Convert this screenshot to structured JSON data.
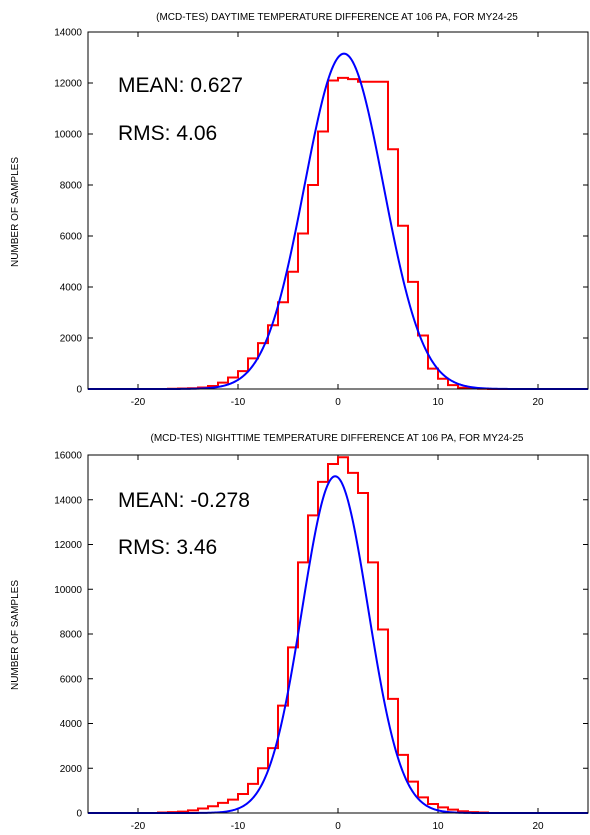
{
  "chart_data": [
    {
      "type": "histogram",
      "title": "(MCD-TES) DAYTIME TEMPERATURE DIFFERENCE AT 106 PA, FOR MY24-25",
      "ylabel": "NUMBER OF SAMPLES",
      "xlabel": "",
      "xlim": [
        -25,
        25
      ],
      "ylim": [
        0,
        14000
      ],
      "xticks": [
        -20,
        -10,
        0,
        10,
        20
      ],
      "yticks": [
        0,
        2000,
        4000,
        6000,
        8000,
        10000,
        12000,
        14000
      ],
      "annotations": [
        "MEAN: 0.627",
        "RMS: 4.06"
      ],
      "histogram": {
        "color": "#ff0000",
        "bin_edges": [
          -25,
          -24,
          -23,
          -22,
          -21,
          -20,
          -19,
          -18,
          -17,
          -16,
          -15,
          -14,
          -13,
          -12,
          -11,
          -10,
          -9,
          -8,
          -7,
          -6,
          -5,
          -4,
          -3,
          -2,
          -1,
          0,
          1,
          2,
          3,
          4,
          5,
          6,
          7,
          8,
          9,
          10,
          11,
          12,
          13,
          14,
          15,
          16,
          17,
          18,
          19,
          20,
          21,
          22,
          23,
          24,
          25
        ],
        "counts": [
          0,
          0,
          0,
          0,
          0,
          0,
          0,
          0,
          10,
          20,
          30,
          60,
          120,
          250,
          450,
          700,
          1200,
          1800,
          2500,
          3400,
          4600,
          6100,
          8000,
          10100,
          12100,
          12200,
          12150,
          12050,
          12050,
          12050,
          9400,
          6400,
          4200,
          2100,
          800,
          400,
          150,
          50,
          20,
          10,
          0,
          0,
          0,
          0,
          0,
          0,
          0,
          0,
          0,
          0
        ]
      },
      "fit": {
        "type": "gaussian",
        "color": "#0000ff",
        "peak": 13150,
        "center": 0.6,
        "sigma": 3.95
      }
    },
    {
      "type": "histogram",
      "title": "(MCD-TES) NIGHTTIME TEMPERATURE DIFFERENCE AT 106 PA, FOR MY24-25",
      "ylabel": "NUMBER OF SAMPLES",
      "xlabel": "",
      "xlim": [
        -25,
        25
      ],
      "ylim": [
        0,
        16000
      ],
      "xticks": [
        -20,
        -10,
        0,
        10,
        20
      ],
      "yticks": [
        0,
        2000,
        4000,
        6000,
        8000,
        10000,
        12000,
        14000,
        16000
      ],
      "annotations": [
        "MEAN: -0.278",
        "RMS: 3.46"
      ],
      "histogram": {
        "color": "#ff0000",
        "bin_edges": [
          -25,
          -24,
          -23,
          -22,
          -21,
          -20,
          -19,
          -18,
          -17,
          -16,
          -15,
          -14,
          -13,
          -12,
          -11,
          -10,
          -9,
          -8,
          -7,
          -6,
          -5,
          -4,
          -3,
          -2,
          -1,
          0,
          1,
          2,
          3,
          4,
          5,
          6,
          7,
          8,
          9,
          10,
          11,
          12,
          13,
          14,
          15,
          16,
          17,
          18,
          19,
          20,
          21,
          22,
          23,
          24,
          25
        ],
        "counts": [
          0,
          0,
          0,
          0,
          0,
          0,
          0,
          20,
          40,
          60,
          120,
          200,
          300,
          450,
          600,
          850,
          1300,
          2000,
          2900,
          4800,
          7400,
          11200,
          13300,
          14800,
          15600,
          15900,
          15200,
          14300,
          11200,
          8200,
          5100,
          2600,
          1400,
          700,
          400,
          250,
          150,
          80,
          40,
          20,
          0,
          0,
          0,
          0,
          0,
          0,
          0,
          0,
          0,
          0
        ]
      },
      "fit": {
        "type": "gaussian",
        "color": "#0000ff",
        "peak": 15050,
        "center": -0.28,
        "sigma": 3.3
      }
    }
  ]
}
